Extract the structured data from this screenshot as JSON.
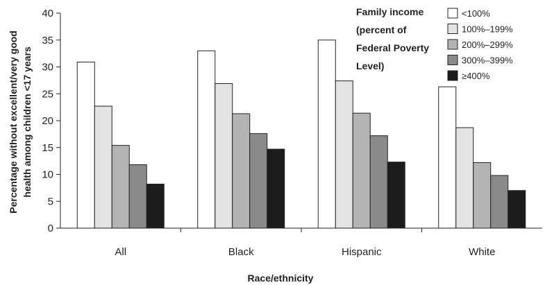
{
  "chart_data": {
    "type": "bar",
    "categories": [
      "All",
      "Black",
      "Hispanic",
      "White"
    ],
    "series": [
      {
        "name": "<100%",
        "color": "#ffffff",
        "values": [
          30.9,
          33.0,
          35.0,
          26.3
        ]
      },
      {
        "name": "100%–199%",
        "color": "#e3e3e3",
        "values": [
          22.7,
          26.9,
          27.4,
          18.7
        ]
      },
      {
        "name": "200%–299%",
        "color": "#b3b3b3",
        "values": [
          15.4,
          21.3,
          21.4,
          12.2
        ]
      },
      {
        "name": "300%–399%",
        "color": "#8a8a8a",
        "values": [
          11.8,
          17.6,
          17.2,
          9.8
        ]
      },
      {
        "name": "≥400%",
        "color": "#1c1c1c",
        "values": [
          8.2,
          14.7,
          12.3,
          7.0
        ]
      }
    ],
    "xlabel": "Race/ethnicity",
    "ylabel_lines": [
      "Percentage without excellent/very good",
      "health among children <17 years"
    ],
    "ylim": [
      0,
      40
    ],
    "yticks": [
      0,
      5,
      10,
      15,
      20,
      25,
      30,
      35,
      40
    ],
    "legend_title_lines": [
      "Family income",
      "(percent of",
      "Federal Poverty",
      "Level)"
    ],
    "legend_position": "top-right",
    "grid": false
  }
}
